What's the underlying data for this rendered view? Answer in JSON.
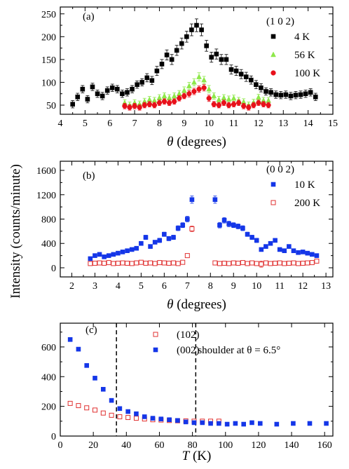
{
  "chart_data": [
    {
      "type": "scatter",
      "panel_label": "(a)",
      "legend_title": "(1 0 2)",
      "legend_position": "top-right",
      "xlabel_symbol": "θ",
      "xlabel_rest": " (degrees)",
      "xlim": [
        4,
        15
      ],
      "ylim": [
        30,
        265
      ],
      "xticks": [
        4,
        4.5,
        5,
        5.5,
        6,
        6.5,
        7,
        7.5,
        8,
        8.5,
        9,
        9.5,
        10,
        10.5,
        11,
        11.5,
        12,
        12.5,
        13,
        13.5,
        14,
        14.5,
        15
      ],
      "xtick_labels": [
        "4",
        "",
        "5",
        "",
        "6",
        "",
        "7",
        "",
        "8",
        "",
        "9",
        "",
        "10",
        "",
        "11",
        "",
        "12",
        "",
        "13",
        "",
        "14",
        "",
        "15"
      ],
      "yticks": [
        50,
        100,
        150,
        200,
        250
      ],
      "grid": false,
      "series": [
        {
          "name": "4 K",
          "marker": "square",
          "color": "#000000",
          "filled": true,
          "x": [
            4.5,
            4.7,
            4.9,
            5.1,
            5.3,
            5.5,
            5.7,
            5.9,
            6.1,
            6.3,
            6.5,
            6.7,
            6.9,
            7.1,
            7.3,
            7.5,
            7.7,
            7.9,
            8.1,
            8.3,
            8.5,
            8.7,
            8.9,
            9.1,
            9.3,
            9.5,
            9.7,
            9.9,
            10.1,
            10.3,
            10.5,
            10.7,
            10.9,
            11.1,
            11.3,
            11.5,
            11.7,
            11.9,
            12.1,
            12.3,
            12.5,
            12.7,
            12.9,
            13.1,
            13.3,
            13.5,
            13.7,
            13.9,
            14.1,
            14.3
          ],
          "y": [
            52,
            68,
            85,
            63,
            90,
            75,
            70,
            82,
            88,
            85,
            75,
            78,
            85,
            95,
            100,
            110,
            104,
            125,
            140,
            160,
            150,
            170,
            185,
            200,
            215,
            225,
            215,
            180,
            155,
            162,
            150,
            150,
            128,
            125,
            118,
            112,
            105,
            95,
            88,
            80,
            78,
            73,
            72,
            73,
            70,
            72,
            73,
            75,
            78,
            68
          ],
          "err": [
            8,
            8,
            8,
            8,
            8,
            8,
            8,
            8,
            8,
            8,
            8,
            8,
            8,
            8,
            8,
            9,
            9,
            10,
            10,
            11,
            11,
            11,
            12,
            12,
            13,
            14,
            13,
            12,
            11,
            11,
            11,
            11,
            10,
            10,
            10,
            10,
            9,
            9,
            9,
            8,
            8,
            8,
            8,
            8,
            8,
            8,
            8,
            8,
            8,
            8
          ]
        },
        {
          "name": "56 K",
          "marker": "triangle",
          "color": "#8ee84a",
          "filled": true,
          "x": [
            6.6,
            6.8,
            7.0,
            7.2,
            7.4,
            7.6,
            7.8,
            8.0,
            8.2,
            8.4,
            8.6,
            8.8,
            9.0,
            9.2,
            9.4,
            9.6,
            9.8,
            10.0,
            10.2,
            10.4,
            10.6,
            10.8,
            11.0,
            11.2,
            11.4,
            11.6,
            11.8,
            12.0,
            12.2,
            12.4
          ],
          "y": [
            55,
            50,
            55,
            52,
            58,
            62,
            60,
            66,
            70,
            66,
            70,
            75,
            82,
            92,
            100,
            112,
            105,
            85,
            70,
            62,
            66,
            63,
            65,
            60,
            57,
            50,
            56,
            67,
            60,
            60
          ],
          "err": [
            7,
            7,
            7,
            7,
            7,
            7,
            7,
            7,
            7,
            7,
            7,
            7,
            8,
            8,
            8,
            9,
            8,
            8,
            7,
            7,
            7,
            7,
            7,
            7,
            7,
            7,
            7,
            7,
            7,
            7
          ]
        },
        {
          "name": "100 K",
          "marker": "circle",
          "color": "#e8101a",
          "filled": true,
          "x": [
            6.6,
            6.8,
            7.0,
            7.2,
            7.4,
            7.6,
            7.8,
            8.0,
            8.2,
            8.4,
            8.6,
            8.8,
            9.0,
            9.2,
            9.4,
            9.6,
            9.8,
            10.0,
            10.2,
            10.4,
            10.6,
            10.8,
            11.0,
            11.2,
            11.4,
            11.6,
            11.8,
            12.0,
            12.2,
            12.4
          ],
          "y": [
            48,
            45,
            48,
            45,
            50,
            52,
            50,
            55,
            58,
            55,
            58,
            65,
            70,
            75,
            80,
            85,
            88,
            65,
            52,
            50,
            55,
            50,
            52,
            55,
            48,
            45,
            50,
            55,
            52,
            50
          ],
          "err": [
            6,
            6,
            6,
            6,
            6,
            6,
            6,
            6,
            6,
            6,
            6,
            6,
            6,
            7,
            7,
            7,
            7,
            7,
            6,
            6,
            6,
            6,
            6,
            6,
            6,
            6,
            6,
            6,
            6,
            6
          ]
        }
      ]
    },
    {
      "type": "scatter",
      "panel_label": "(b)",
      "legend_title": "(0 0 2)",
      "legend_position": "top-right",
      "xlabel_symbol": "θ",
      "xlabel_rest": " (degrees)",
      "xlim": [
        1.5,
        13.3
      ],
      "ylim": [
        -150,
        1750
      ],
      "xticks": [
        2,
        2.5,
        3,
        3.5,
        4,
        4.5,
        5,
        5.5,
        6,
        6.5,
        7,
        7.5,
        8,
        8.5,
        9,
        9.5,
        10,
        10.5,
        11,
        11.5,
        12,
        12.5,
        13
      ],
      "xtick_labels": [
        "2",
        "",
        "3",
        "",
        "4",
        "",
        "5",
        "",
        "6",
        "",
        "7",
        "",
        "8",
        "",
        "9",
        "",
        "10",
        "",
        "11",
        "",
        "12",
        "",
        "13"
      ],
      "yticks": [
        0,
        400,
        800,
        1200,
        1600
      ],
      "grid": false,
      "series": [
        {
          "name": "10 K",
          "marker": "square",
          "color": "#1436e8",
          "filled": true,
          "x": [
            2.8,
            3.0,
            3.2,
            3.4,
            3.6,
            3.8,
            4.0,
            4.2,
            4.4,
            4.6,
            4.8,
            5.0,
            5.2,
            5.4,
            5.6,
            5.8,
            6.0,
            6.2,
            6.4,
            6.6,
            6.8,
            7.0,
            7.2,
            8.2,
            8.4,
            8.6,
            8.8,
            9.0,
            9.2,
            9.4,
            9.6,
            9.8,
            10.0,
            10.2,
            10.4,
            10.6,
            10.8,
            11.0,
            11.2,
            11.4,
            11.6,
            11.8,
            12.0,
            12.2,
            12.4,
            12.6
          ],
          "y": [
            150,
            200,
            220,
            180,
            200,
            220,
            240,
            260,
            280,
            300,
            320,
            400,
            500,
            350,
            420,
            450,
            550,
            480,
            500,
            650,
            700,
            800,
            1120,
            1120,
            700,
            780,
            720,
            700,
            680,
            650,
            550,
            500,
            450,
            300,
            350,
            400,
            450,
            300,
            280,
            350,
            280,
            250,
            260,
            240,
            220,
            200
          ],
          "err": [
            25,
            25,
            25,
            25,
            25,
            25,
            25,
            25,
            25,
            25,
            30,
            30,
            35,
            30,
            30,
            35,
            35,
            35,
            35,
            40,
            40,
            45,
            60,
            60,
            45,
            45,
            45,
            40,
            40,
            40,
            35,
            35,
            35,
            30,
            30,
            30,
            30,
            30,
            30,
            30,
            30,
            30,
            30,
            30,
            30,
            30
          ]
        },
        {
          "name": "200 K",
          "marker": "square",
          "color": "#e03030",
          "filled": false,
          "x": [
            2.8,
            3.0,
            3.2,
            3.4,
            3.6,
            3.8,
            4.0,
            4.2,
            4.4,
            4.6,
            4.8,
            5.0,
            5.2,
            5.4,
            5.6,
            5.8,
            6.0,
            6.2,
            6.4,
            6.6,
            6.8,
            7.0,
            7.2,
            8.2,
            8.4,
            8.6,
            8.8,
            9.0,
            9.2,
            9.4,
            9.6,
            9.8,
            10.0,
            10.2,
            10.4,
            10.6,
            10.8,
            11.0,
            11.2,
            11.4,
            11.6,
            11.8,
            12.0,
            12.2,
            12.4,
            12.6
          ],
          "y": [
            70,
            75,
            80,
            75,
            85,
            70,
            75,
            80,
            75,
            70,
            80,
            90,
            75,
            80,
            70,
            85,
            80,
            75,
            80,
            70,
            90,
            200,
            640,
            80,
            70,
            75,
            70,
            80,
            75,
            85,
            70,
            80,
            70,
            60,
            80,
            70,
            75,
            80,
            70,
            75,
            80,
            70,
            75,
            80,
            85,
            110
          ],
          "err": [
            15,
            15,
            15,
            15,
            15,
            15,
            15,
            15,
            15,
            15,
            15,
            15,
            15,
            15,
            15,
            15,
            15,
            15,
            15,
            15,
            15,
            25,
            45,
            15,
            15,
            15,
            15,
            15,
            15,
            15,
            15,
            15,
            15,
            50,
            15,
            15,
            15,
            15,
            15,
            15,
            15,
            15,
            15,
            15,
            15,
            15
          ]
        }
      ]
    },
    {
      "type": "scatter",
      "panel_label": "(c)",
      "legend_position": "top-center",
      "xlabel_symbol": "T",
      "xlabel_rest": " (K)",
      "xlim": [
        0,
        165
      ],
      "ylim": [
        0,
        760
      ],
      "xticks": [
        0,
        20,
        40,
        60,
        80,
        100,
        120,
        140,
        160
      ],
      "xtick_labels": [
        "0",
        "20",
        "40",
        "60",
        "80",
        "100",
        "120",
        "140",
        "160"
      ],
      "yticks": [
        0,
        200,
        400,
        600
      ],
      "grid": false,
      "vlines": [
        34,
        82
      ],
      "annotation": "shoulder at θ = 6.5°",
      "series": [
        {
          "name": "(102)",
          "marker": "square",
          "color": "#e03030",
          "filled": false,
          "x": [
            6,
            11,
            16,
            21,
            26,
            31,
            36,
            41,
            46,
            51,
            56,
            61,
            66,
            71,
            76,
            81,
            86,
            91,
            96
          ],
          "y": [
            220,
            205,
            190,
            175,
            155,
            140,
            130,
            125,
            120,
            115,
            110,
            108,
            105,
            103,
            102,
            100,
            100,
            100,
            100
          ]
        },
        {
          "name": "(002)",
          "marker": "square",
          "color": "#1436e8",
          "filled": true,
          "x": [
            6,
            11,
            16,
            21,
            26,
            31,
            36,
            41,
            46,
            51,
            56,
            61,
            66,
            71,
            76,
            81,
            86,
            91,
            96,
            101,
            106,
            111,
            116,
            121,
            131,
            141,
            151,
            161
          ],
          "y": [
            650,
            585,
            475,
            390,
            315,
            240,
            185,
            165,
            150,
            130,
            120,
            115,
            110,
            105,
            95,
            90,
            90,
            85,
            85,
            80,
            85,
            80,
            90,
            85,
            80,
            85,
            85,
            85
          ]
        }
      ]
    }
  ],
  "shared_ylabel": "Intensity (counts/minute)"
}
